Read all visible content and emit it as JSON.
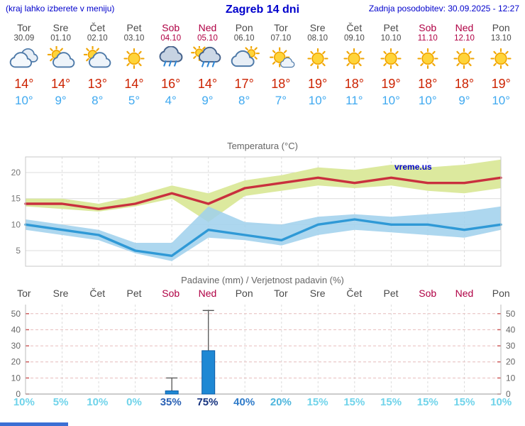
{
  "header": {
    "left_note": "(kraj lahko izberete v meniju)",
    "title": "Zagreb 14 dni",
    "updated": "Zadnja posodobitev: 30.09.2025 - 12:27"
  },
  "days": [
    {
      "name": "Tor",
      "date": "30.09",
      "weekend": false,
      "icon": "cloudy",
      "high": "14°",
      "low": "10°"
    },
    {
      "name": "Sre",
      "date": "01.10",
      "weekend": false,
      "icon": "partly-cloudy",
      "high": "14°",
      "low": "9°"
    },
    {
      "name": "Čet",
      "date": "02.10",
      "weekend": false,
      "icon": "partly-cloudy",
      "high": "13°",
      "low": "8°"
    },
    {
      "name": "Pet",
      "date": "03.10",
      "weekend": false,
      "icon": "sunny",
      "high": "14°",
      "low": "5°"
    },
    {
      "name": "Sob",
      "date": "04.10",
      "weekend": true,
      "icon": "rain",
      "high": "16°",
      "low": "4°"
    },
    {
      "name": "Ned",
      "date": "05.10",
      "weekend": true,
      "icon": "showers",
      "high": "14°",
      "low": "9°"
    },
    {
      "name": "Pon",
      "date": "06.10",
      "weekend": false,
      "icon": "cloudy-sun",
      "high": "17°",
      "low": "8°"
    },
    {
      "name": "Tor",
      "date": "07.10",
      "weekend": false,
      "icon": "mostly-sunny",
      "high": "18°",
      "low": "7°"
    },
    {
      "name": "Sre",
      "date": "08.10",
      "weekend": false,
      "icon": "sunny",
      "high": "19°",
      "low": "10°"
    },
    {
      "name": "Čet",
      "date": "09.10",
      "weekend": false,
      "icon": "sunny",
      "high": "18°",
      "low": "11°"
    },
    {
      "name": "Pet",
      "date": "10.10",
      "weekend": false,
      "icon": "sunny",
      "high": "19°",
      "low": "10°"
    },
    {
      "name": "Sob",
      "date": "11.10",
      "weekend": true,
      "icon": "sunny",
      "high": "18°",
      "low": "10°"
    },
    {
      "name": "Ned",
      "date": "12.10",
      "weekend": true,
      "icon": "sunny",
      "high": "18°",
      "low": "9°"
    },
    {
      "name": "Pon",
      "date": "13.10",
      "weekend": false,
      "icon": "sunny",
      "high": "19°",
      "low": "10°"
    }
  ],
  "chart_data": [
    {
      "type": "line",
      "title": "Temperatura (°C)",
      "watermark": "vreme.us",
      "x_labels": [
        "Tor",
        "Sre",
        "Čet",
        "Pet",
        "Sob",
        "Ned",
        "Pon",
        "Tor",
        "Sre",
        "Čet",
        "Pet",
        "Sob",
        "Ned",
        "Pon"
      ],
      "ylim": [
        2,
        23
      ],
      "yticks": [
        5,
        10,
        15,
        20
      ],
      "series": [
        {
          "name": "max-temperature",
          "color": "#c9303e",
          "values": [
            14,
            14,
            13,
            14,
            16,
            14,
            17,
            18,
            19,
            18,
            19,
            18,
            18,
            19
          ]
        },
        {
          "name": "min-temperature",
          "color": "#2f99d6",
          "values": [
            10,
            9,
            8,
            5,
            4,
            9,
            8,
            7,
            10,
            11,
            10,
            10,
            9,
            10
          ]
        }
      ],
      "bands": [
        {
          "name": "max-range",
          "color": "#dce99e",
          "opacity": 1,
          "upper": [
            15,
            15,
            14,
            15.5,
            17.5,
            16,
            18.5,
            19.5,
            21,
            20.5,
            21.5,
            21,
            21.5,
            22.5
          ],
          "lower": [
            13.5,
            13,
            12.5,
            13.5,
            15,
            10.5,
            15.5,
            16.5,
            17.5,
            17,
            17.5,
            16.5,
            16,
            17
          ]
        },
        {
          "name": "min-range",
          "color": "#9fd0ec",
          "opacity": 0.85,
          "upper": [
            11,
            10,
            9,
            6.5,
            6.5,
            13.5,
            10.5,
            10,
            11.5,
            12,
            11.5,
            12,
            12.5,
            13.5
          ],
          "lower": [
            9,
            8,
            7,
            4.5,
            3,
            7.5,
            7,
            6,
            8,
            9,
            8.5,
            8,
            7.5,
            9
          ]
        }
      ]
    },
    {
      "type": "bar",
      "title": "Padavine (mm) / Verjetnost padavin (%)",
      "x_labels": [
        "Tor",
        "Sre",
        "Čet",
        "Pet",
        "Sob",
        "Ned",
        "Pon",
        "Tor",
        "Sre",
        "Čet",
        "Pet",
        "Sob",
        "Ned",
        "Pon"
      ],
      "weekend": [
        false,
        false,
        false,
        false,
        true,
        true,
        false,
        false,
        false,
        false,
        false,
        true,
        true,
        false
      ],
      "ylim": [
        0,
        53
      ],
      "yticks": [
        0,
        10,
        20,
        30,
        40,
        50
      ],
      "values": [
        0,
        0,
        0,
        0,
        2,
        27,
        0,
        0,
        0,
        0,
        0,
        0,
        0,
        0
      ],
      "whisker_high": [
        0,
        0,
        0,
        0,
        10,
        52,
        0,
        0,
        0,
        0,
        0,
        0,
        0,
        0
      ],
      "bar_color": "#1e88d4",
      "bar_stroke": "#0c5ca6",
      "probabilities": [
        "10%",
        "5%",
        "10%",
        "0%",
        "35%",
        "75%",
        "40%",
        "20%",
        "15%",
        "15%",
        "15%",
        "15%",
        "15%",
        "10%"
      ],
      "prob_colors": [
        "#6fd3ea",
        "#6fd3ea",
        "#6fd3ea",
        "#6fd3ea",
        "#2b62b5",
        "#16337f",
        "#2f7bc9",
        "#4fb6dd",
        "#6fd3ea",
        "#6fd3ea",
        "#6fd3ea",
        "#6fd3ea",
        "#6fd3ea",
        "#6fd3ea"
      ]
    }
  ],
  "misc": {
    "header_color": "#0000cc",
    "weekend_color": "#b00044",
    "high_temp_color": "#cc2200",
    "low_temp_color": "#3fa9f0",
    "footer_bar_color": "#3b6fd4"
  }
}
